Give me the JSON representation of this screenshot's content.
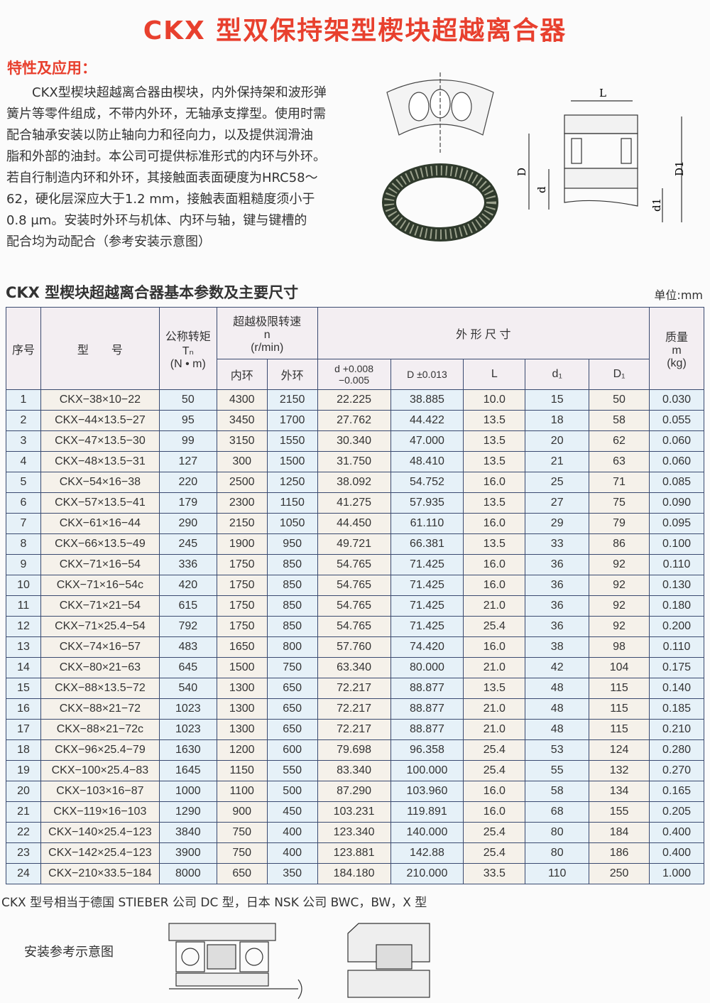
{
  "title": "CKX 型双保持架型楔块超越离合器",
  "features_heading": "特性及应用：",
  "intro_lines": [
    "　　CKX型楔块超越离合器由楔块，内外保持架和波形弹",
    "簧片等零件组成，不带内外环，无轴承支撑型。使用时需",
    "配合轴承安装以防止轴向力和径向力，以及提供润滑油",
    "脂和外部的油封。本公司可提供标准形式的内环与外环。",
    "若自行制造内环和外环，其接触面表面硬度为HRC58～",
    "62，硬化层深应大于1.2 mm，接触表面粗糙度须小于",
    "0.8 μm。安装时外环与机体、内环与轴，键与键槽的",
    "配合均为动配合（参考安装示意图）"
  ],
  "diagram_labels": {
    "L": "L",
    "D": "D",
    "d": "d",
    "D1": "D1",
    "d1": "d1"
  },
  "table_title": "CKX 型楔块超越离合器基本参数及主要尺寸",
  "unit": "单位:mm",
  "headers": {
    "no": "序号",
    "model": "型　　号",
    "torque": "公称转矩",
    "torque_sym": "Tₙ",
    "torque_unit": "(N • m)",
    "speed": "超越极限转速",
    "speed_sym": "n",
    "speed_unit": "(r/min)",
    "inner": "内环",
    "outer": "外环",
    "dims": "外 形 尺 寸",
    "d": "d +0.008 −0.005",
    "D": "D ±0.013",
    "L": "L",
    "d1": "d₁",
    "D1": "D₁",
    "mass": "质量",
    "mass_sym": "m",
    "mass_unit": "(kg)"
  },
  "rows": [
    [
      "1",
      "CKX−38×10−22",
      "50",
      "4300",
      "2150",
      "22.225",
      "38.885",
      "10.0",
      "15",
      "50",
      "0.030"
    ],
    [
      "2",
      "CKX−44×13.5−27",
      "95",
      "3450",
      "1700",
      "27.762",
      "44.422",
      "13.5",
      "18",
      "58",
      "0.055"
    ],
    [
      "3",
      "CKX−47×13.5−30",
      "99",
      "3150",
      "1550",
      "30.340",
      "47.000",
      "13.5",
      "20",
      "62",
      "0.060"
    ],
    [
      "4",
      "CKX−48×13.5−31",
      "127",
      "300",
      "1500",
      "31.750",
      "48.410",
      "13.5",
      "21",
      "63",
      "0.060"
    ],
    [
      "5",
      "CKX−54×16−38",
      "220",
      "2500",
      "1250",
      "38.092",
      "54.752",
      "16.0",
      "25",
      "71",
      "0.085"
    ],
    [
      "6",
      "CKX−57×13.5−41",
      "179",
      "2300",
      "1150",
      "41.275",
      "57.935",
      "13.5",
      "27",
      "75",
      "0.090"
    ],
    [
      "7",
      "CKX−61×16−44",
      "290",
      "2150",
      "1050",
      "44.450",
      "61.110",
      "16.0",
      "29",
      "79",
      "0.095"
    ],
    [
      "8",
      "CKX−66×13.5−49",
      "245",
      "1900",
      "950",
      "49.721",
      "66.381",
      "13.5",
      "33",
      "86",
      "0.100"
    ],
    [
      "9",
      "CKX−71×16−54",
      "336",
      "1750",
      "850",
      "54.765",
      "71.425",
      "16.0",
      "36",
      "92",
      "0.110"
    ],
    [
      "10",
      "CKX−71×16−54c",
      "420",
      "1750",
      "850",
      "54.765",
      "71.425",
      "16.0",
      "36",
      "92",
      "0.130"
    ],
    [
      "11",
      "CKX−71×21−54",
      "615",
      "1750",
      "850",
      "54.765",
      "71.425",
      "21.0",
      "36",
      "92",
      "0.180"
    ],
    [
      "12",
      "CKX−71×25.4−54",
      "792",
      "1750",
      "850",
      "54.765",
      "71.425",
      "25.4",
      "36",
      "92",
      "0.200"
    ],
    [
      "13",
      "CKX−74×16−57",
      "483",
      "1650",
      "800",
      "57.760",
      "74.420",
      "16.0",
      "38",
      "98",
      "0.110"
    ],
    [
      "14",
      "CKX−80×21−63",
      "645",
      "1500",
      "750",
      "63.340",
      "80.000",
      "21.0",
      "42",
      "104",
      "0.175"
    ],
    [
      "15",
      "CKX−88×13.5−72",
      "540",
      "1300",
      "650",
      "72.217",
      "88.877",
      "13.5",
      "48",
      "115",
      "0.140"
    ],
    [
      "16",
      "CKX−88×21−72",
      "1023",
      "1300",
      "650",
      "72.217",
      "88.877",
      "21.0",
      "48",
      "115",
      "0.185"
    ],
    [
      "17",
      "CKX−88×21−72c",
      "1023",
      "1300",
      "650",
      "72.217",
      "88.877",
      "21.0",
      "48",
      "115",
      "0.210"
    ],
    [
      "18",
      "CKX−96×25.4−79",
      "1630",
      "1200",
      "600",
      "79.698",
      "96.358",
      "25.4",
      "53",
      "124",
      "0.280"
    ],
    [
      "19",
      "CKX−100×25.4−83",
      "1645",
      "1150",
      "550",
      "83.340",
      "100.000",
      "25.4",
      "55",
      "132",
      "0.270"
    ],
    [
      "20",
      "CKX−103×16−87",
      "1000",
      "1100",
      "500",
      "87.290",
      "103.960",
      "16.0",
      "58",
      "134",
      "0.165"
    ],
    [
      "21",
      "CKX−119×16−103",
      "1290",
      "900",
      "450",
      "103.231",
      "119.891",
      "16.0",
      "68",
      "155",
      "0.205"
    ],
    [
      "22",
      "CKX−140×25.4−123",
      "3840",
      "750",
      "400",
      "123.340",
      "140.000",
      "25.4",
      "80",
      "184",
      "0.400"
    ],
    [
      "23",
      "CKX−142×25.4−123",
      "3900",
      "750",
      "400",
      "123.881",
      "142.88",
      "25.4",
      "80",
      "186",
      "0.400"
    ],
    [
      "24",
      "CKX−210×33.5−184",
      "8000",
      "650",
      "350",
      "184.180",
      "210.000",
      "33.5",
      "110",
      "250",
      "1.000"
    ]
  ],
  "note": "CKX 型号相当于德国 STIEBER 公司 DC 型，日本 NSK 公司 BWC，BW，X 型",
  "install_label": "安装参考示意图",
  "colors": {
    "title": "#e8402e",
    "border": "#3a4a70"
  }
}
